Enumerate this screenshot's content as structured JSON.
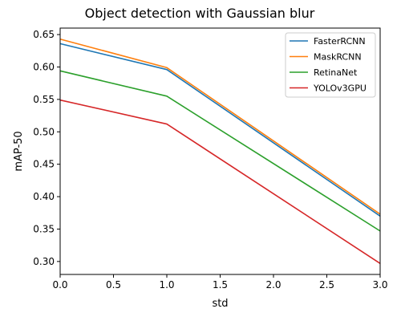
{
  "chart_data": {
    "type": "line",
    "title": "Object detection with Gaussian blur",
    "xlabel": "std",
    "ylabel": "mAP-50",
    "x": [
      0,
      1,
      3
    ],
    "xlim": [
      0,
      3
    ],
    "ylim": [
      0.28,
      0.66
    ],
    "xticks": [
      0.0,
      0.5,
      1.0,
      1.5,
      2.0,
      2.5,
      3.0
    ],
    "xtick_labels": [
      "0.0",
      "0.5",
      "1.0",
      "1.5",
      "2.0",
      "2.5",
      "3.0"
    ],
    "yticks": [
      0.3,
      0.35,
      0.4,
      0.45,
      0.5,
      0.55,
      0.6,
      0.65
    ],
    "ytick_labels": [
      "0.30",
      "0.35",
      "0.40",
      "0.45",
      "0.50",
      "0.55",
      "0.60",
      "0.65"
    ],
    "grid": false,
    "legend_position": "top-right",
    "series": [
      {
        "name": "FasterRCNN",
        "color": "#1f77b4",
        "values": [
          0.636,
          0.596,
          0.37
        ]
      },
      {
        "name": "MaskRCNN",
        "color": "#ff7f0e",
        "values": [
          0.643,
          0.599,
          0.373
        ]
      },
      {
        "name": "RetinaNet",
        "color": "#2ca02c",
        "values": [
          0.594,
          0.555,
          0.347
        ]
      },
      {
        "name": "YOLOv3GPU",
        "color": "#d62728",
        "values": [
          0.549,
          0.512,
          0.297
        ]
      }
    ]
  }
}
